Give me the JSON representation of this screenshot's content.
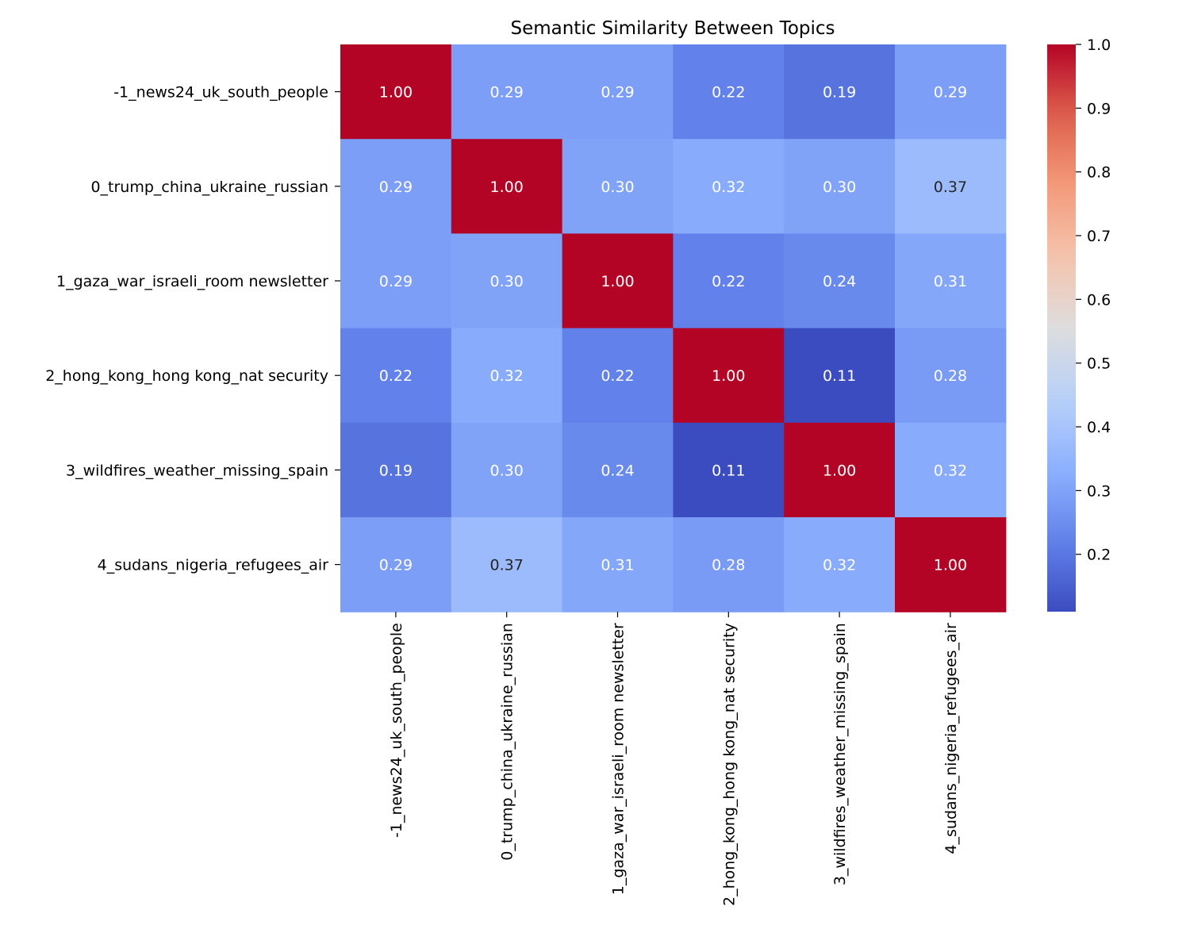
{
  "chart_data": {
    "type": "heatmap",
    "title": "Semantic Similarity Between Topics",
    "xlabel": "",
    "ylabel": "",
    "row_labels": [
      "-1_news24_uk_south_people",
      "0_trump_china_ukraine_russian",
      "1_gaza_war_israeli_room newsletter",
      "2_hong_kong_hong kong_nat security",
      "3_wildfires_weather_missing_spain",
      "4_sudans_nigeria_refugees_air"
    ],
    "col_labels": [
      "-1_news24_uk_south_people",
      "0_trump_china_ukraine_russian",
      "1_gaza_war_israeli_room newsletter",
      "2_hong_kong_hong kong_nat security",
      "3_wildfires_weather_missing_spain",
      "4_sudans_nigeria_refugees_air"
    ],
    "values": [
      [
        1.0,
        0.29,
        0.29,
        0.22,
        0.19,
        0.29
      ],
      [
        0.29,
        1.0,
        0.3,
        0.32,
        0.3,
        0.37
      ],
      [
        0.29,
        0.3,
        1.0,
        0.22,
        0.24,
        0.31
      ],
      [
        0.22,
        0.32,
        0.22,
        1.0,
        0.11,
        0.28
      ],
      [
        0.19,
        0.3,
        0.24,
        0.11,
        1.0,
        0.32
      ],
      [
        0.29,
        0.37,
        0.31,
        0.28,
        0.32,
        1.0
      ]
    ],
    "colormap": "coolwarm",
    "value_range": [
      0.11,
      1.0
    ],
    "colorbar_ticks": [
      0.2,
      0.3,
      0.4,
      0.5,
      0.6,
      0.7,
      0.8,
      0.9,
      1.0
    ],
    "colorbar_tick_labels": [
      "0.2",
      "0.3",
      "0.4",
      "0.5",
      "0.6",
      "0.7",
      "0.8",
      "0.9",
      "1.0"
    ],
    "annotation_format": "2 decimals"
  }
}
